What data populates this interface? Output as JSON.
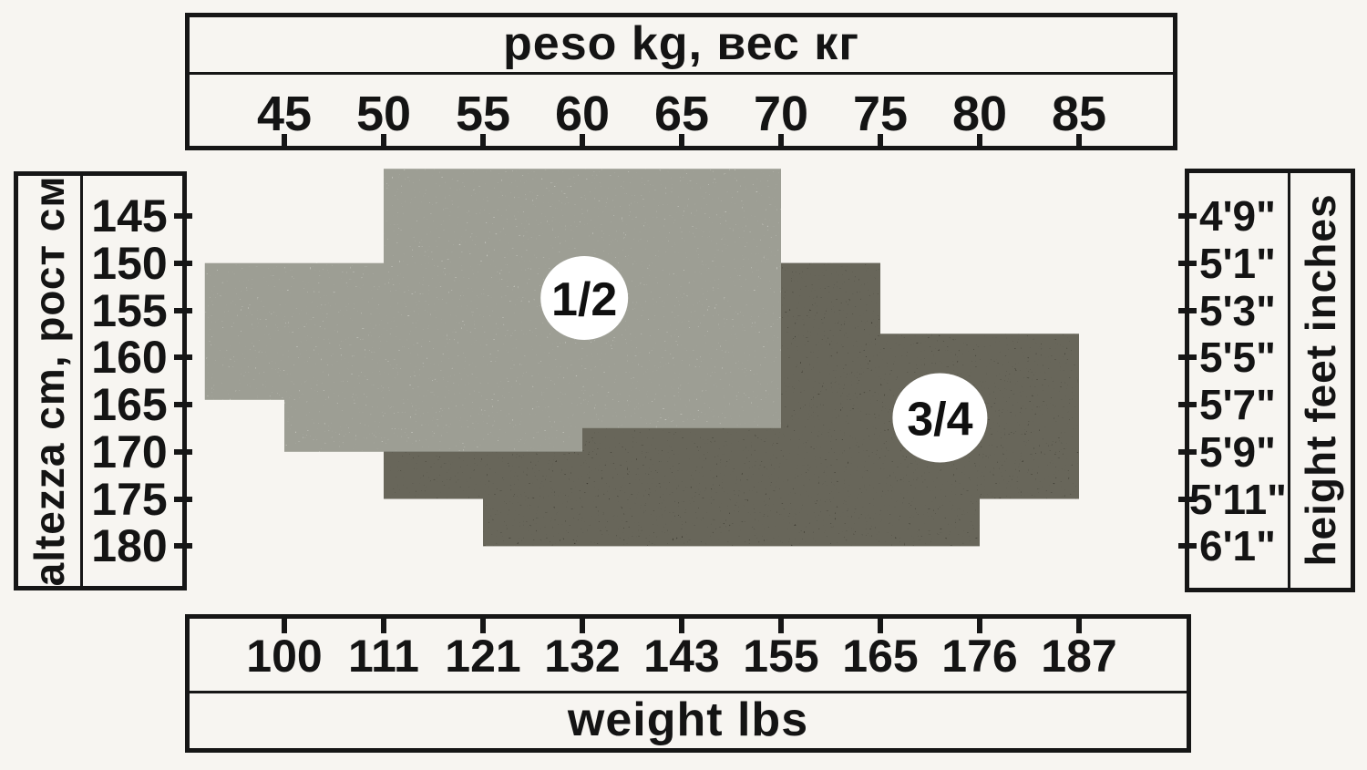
{
  "colors": {
    "background": "#f7f5f1",
    "border": "#161616",
    "text": "#141414",
    "region_light": "#cbccc5",
    "region_dark": "#3a392f",
    "label_circle": "#ffffff"
  },
  "chart_data": {
    "type": "area",
    "title": "Size chart: weight vs height regions for sizes 1/2 and 3/4",
    "grid": false,
    "axes": {
      "top": {
        "label": "peso kg, вес кг",
        "ticks": [
          45,
          50,
          55,
          60,
          65,
          70,
          75,
          80,
          85
        ],
        "range_kg": [
          40,
          90
        ]
      },
      "bottom": {
        "label": "weight lbs",
        "ticks": [
          100,
          111,
          121,
          132,
          143,
          155,
          165,
          176,
          187
        ]
      },
      "left": {
        "label": "altezza cm, рост см",
        "ticks": [
          145,
          150,
          155,
          160,
          165,
          170,
          175,
          180
        ],
        "range_cm": [
          139,
          184
        ]
      },
      "right": {
        "label": "height feet inches",
        "ticks": [
          "4'9\"",
          "5'1\"",
          "5'3\"",
          "5'5\"",
          "5'7\"",
          "5'9\"",
          "5'11\"",
          "6'1\""
        ]
      }
    },
    "regions": [
      {
        "name": "1/2",
        "color": "#cbccc5",
        "label_pos": {
          "kg": 60.1,
          "cm": 153.7
        },
        "polygon_kg_cm": [
          [
            50,
            140
          ],
          [
            70,
            140
          ],
          [
            70,
            167.5
          ],
          [
            60,
            167.5
          ],
          [
            60,
            170
          ],
          [
            45,
            170
          ],
          [
            45,
            164.5
          ],
          [
            41,
            164.5
          ],
          [
            41,
            150
          ],
          [
            50,
            150
          ]
        ]
      },
      {
        "name": "3/4",
        "color": "#3a392f",
        "label_pos": {
          "kg": 78,
          "cm": 166.4
        },
        "polygon_kg_cm": [
          [
            70,
            150
          ],
          [
            75,
            150
          ],
          [
            75,
            157.5
          ],
          [
            85,
            157.5
          ],
          [
            85,
            175
          ],
          [
            80,
            175
          ],
          [
            80,
            180
          ],
          [
            55,
            180
          ],
          [
            55,
            175
          ],
          [
            50,
            175
          ],
          [
            50,
            170
          ],
          [
            60,
            170
          ],
          [
            60,
            167.5
          ],
          [
            70,
            167.5
          ]
        ]
      }
    ]
  }
}
